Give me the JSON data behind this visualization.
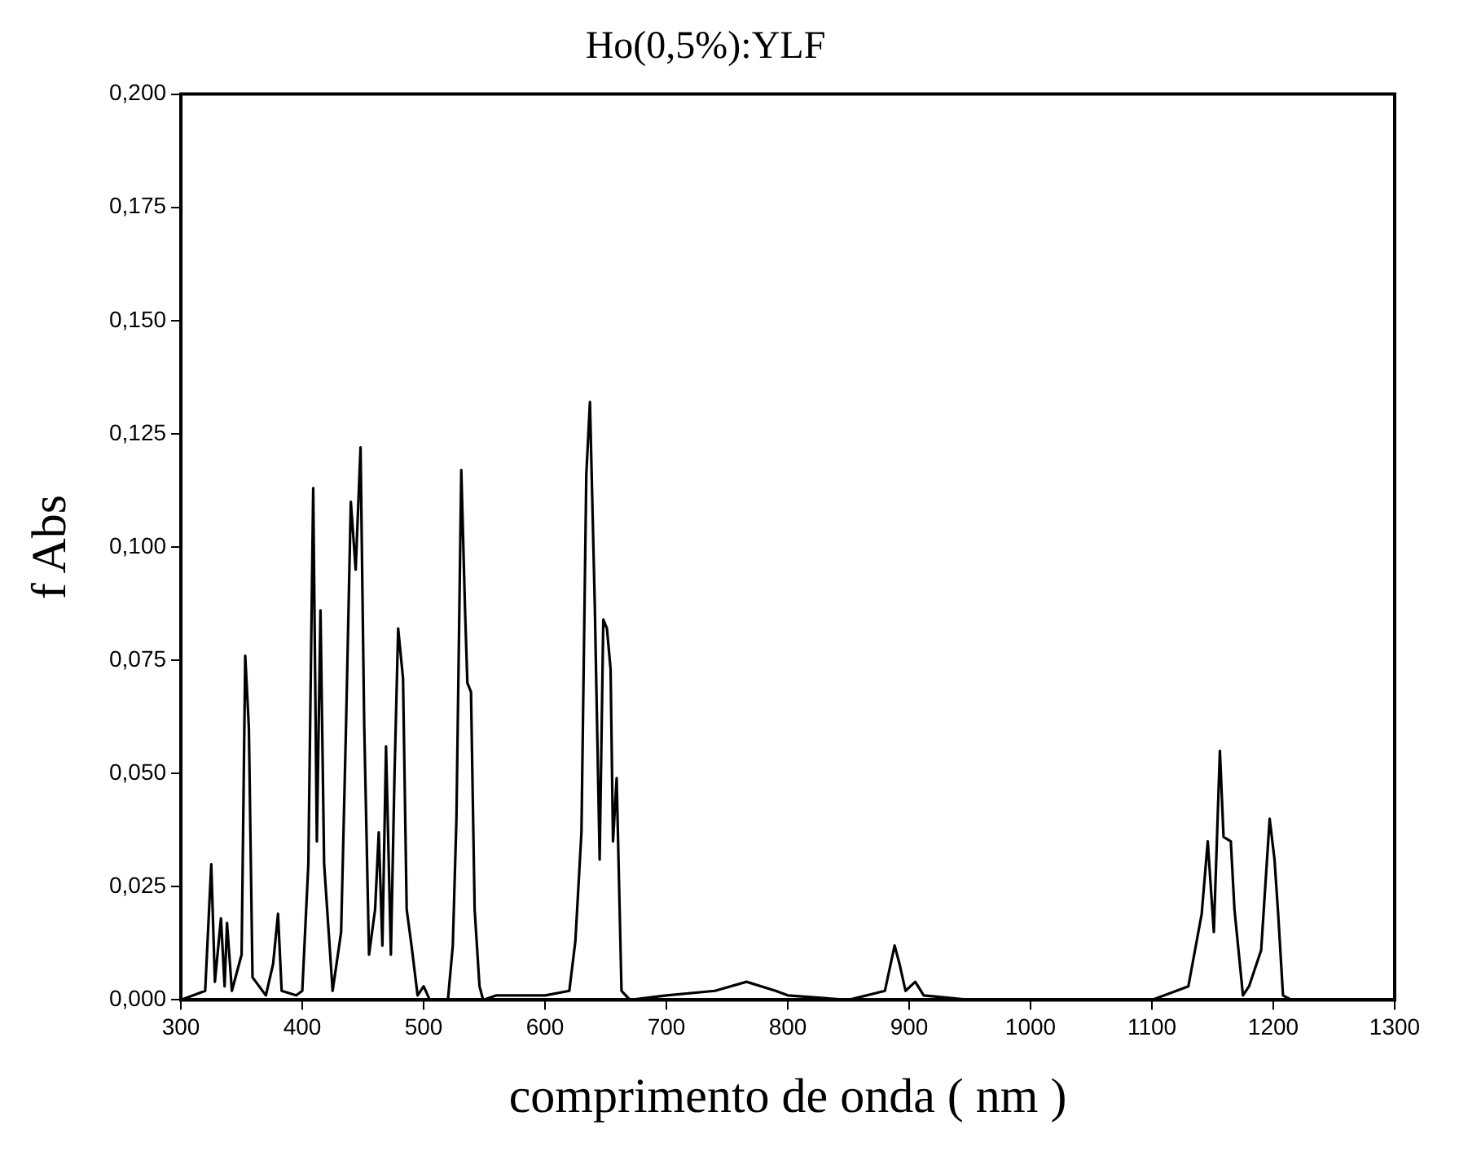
{
  "chart_data": {
    "type": "line",
    "title": "Ho(0,5%):YLF",
    "xlabel": "comprimento de onda ( nm )",
    "ylabel": "f Abs",
    "x": [
      300,
      320,
      325,
      328,
      333,
      336,
      338,
      342,
      350,
      353,
      356,
      359,
      370,
      376,
      380,
      383,
      395,
      400,
      405,
      409,
      412,
      415,
      418,
      425,
      432,
      436,
      440,
      444,
      448,
      451,
      455,
      460,
      463,
      466,
      469,
      473,
      476,
      479,
      483,
      486,
      490,
      495,
      500,
      505,
      520,
      524,
      527,
      531,
      534,
      536,
      539,
      542,
      546,
      549,
      560,
      600,
      620,
      625,
      630,
      634,
      637,
      641,
      645,
      648,
      651,
      654,
      656,
      659,
      663,
      670,
      700,
      740,
      766,
      790,
      800,
      850,
      880,
      888,
      892,
      897,
      905,
      912,
      950,
      1100,
      1130,
      1141,
      1146,
      1151,
      1156,
      1159,
      1165,
      1168,
      1175,
      1180,
      1190,
      1197,
      1201,
      1204,
      1208,
      1215
    ],
    "series": [
      {
        "color": "#000000",
        "values": [
          0,
          0.002,
          0.03,
          0.004,
          0.018,
          0.003,
          0.017,
          0.002,
          0.01,
          0.076,
          0.06,
          0.005,
          0.001,
          0.008,
          0.019,
          0.002,
          0.001,
          0.002,
          0.03,
          0.113,
          0.035,
          0.086,
          0.03,
          0.002,
          0.015,
          0.06,
          0.11,
          0.095,
          0.122,
          0.061,
          0.01,
          0.02,
          0.037,
          0.012,
          0.056,
          0.01,
          0.05,
          0.082,
          0.071,
          0.02,
          0.012,
          0.001,
          0.003,
          0,
          0,
          0.012,
          0.04,
          0.117,
          0.087,
          0.07,
          0.068,
          0.02,
          0.003,
          0,
          0.001,
          0.001,
          0.002,
          0.013,
          0.037,
          0.116,
          0.132,
          0.087,
          0.031,
          0.084,
          0.082,
          0.073,
          0.035,
          0.049,
          0.002,
          0,
          0.001,
          0.002,
          0.004,
          0.002,
          0.001,
          0,
          0.002,
          0.012,
          0.008,
          0.002,
          0.004,
          0.001,
          0,
          0,
          0.003,
          0.019,
          0.035,
          0.015,
          0.055,
          0.036,
          0.035,
          0.02,
          0.001,
          0.003,
          0.011,
          0.04,
          0.031,
          0.019,
          0.001,
          0
        ]
      }
    ],
    "xlim": [
      300,
      1300
    ],
    "xticks": [
      300,
      400,
      500,
      600,
      700,
      800,
      900,
      1000,
      1100,
      1200,
      1300
    ],
    "ylim": [
      0,
      0.2
    ],
    "yticks": [
      {
        "value": 0,
        "label": "0,000"
      },
      {
        "value": 0.025,
        "label": "0,025"
      },
      {
        "value": 0.05,
        "label": "0,050"
      },
      {
        "value": 0.075,
        "label": "0,075"
      },
      {
        "value": 0.1,
        "label": "0,100"
      },
      {
        "value": 0.125,
        "label": "0,125"
      },
      {
        "value": 0.15,
        "label": "0,150"
      },
      {
        "value": 0.175,
        "label": "0,175"
      },
      {
        "value": 0.2,
        "label": "0,200"
      }
    ],
    "grid": false,
    "legend": false,
    "marker": "none",
    "line_style": "solid"
  }
}
